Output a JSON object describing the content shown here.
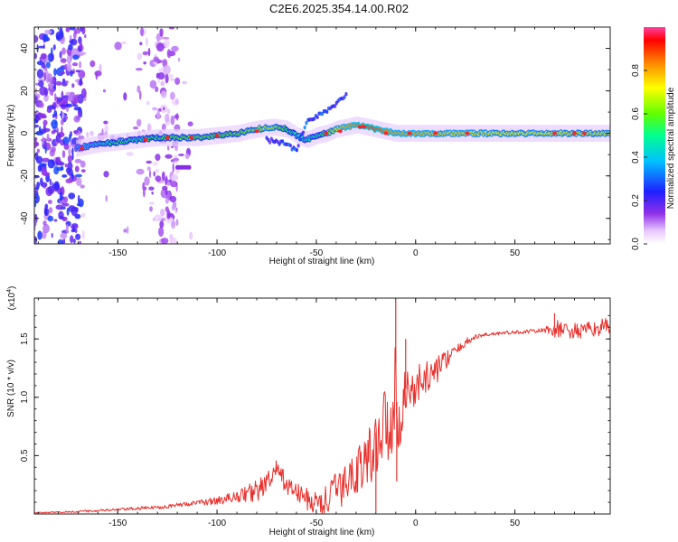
{
  "title": "C2E6.2025.354.14.00.R02",
  "colors": {
    "snr_line": "#e8302c",
    "track_core": "#d42020",
    "track_mid": "#b4f020",
    "track_edge": "#2060ff",
    "noise": "#7a20e0",
    "frame": "#222222"
  },
  "chart_data": [
    {
      "type": "heatmap",
      "name": "spectrogram",
      "xlabel": "Height of straight line (km)",
      "ylabel": "Frequency (Hz)",
      "xlim": [
        -192,
        98
      ],
      "ylim": [
        -52,
        50
      ],
      "x_ticks": [
        -150,
        -100,
        -50,
        0,
        50
      ],
      "x_tick_labels": [
        "-150",
        "-100",
        "-50",
        "0",
        "50"
      ],
      "y_ticks": [
        -40,
        -20,
        0,
        20,
        40
      ],
      "y_tick_labels": [
        "-40",
        "-20",
        "0",
        "20",
        "40"
      ],
      "colorbar": {
        "label": "Normalized spectral amplitude",
        "range": [
          0,
          1
        ],
        "ticks": [
          0.0,
          0.2,
          0.4,
          0.6,
          0.8
        ],
        "tick_labels": [
          "0.0",
          "0.2",
          "0.4",
          "0.6",
          "0.8"
        ],
        "colormap": [
          "#ffffff",
          "#e0c0ff",
          "#8020e0",
          "#2020ff",
          "#00c0ff",
          "#00ff80",
          "#80ff00",
          "#ffff00",
          "#ff8000",
          "#ff0000",
          "#ff40a0"
        ]
      },
      "track_x": [
        -171,
        -160,
        -150,
        -140,
        -130,
        -120,
        -110,
        -100,
        -90,
        -80,
        -72,
        -65,
        -60,
        -55,
        -50,
        -45,
        -40,
        -35,
        -30,
        -25,
        -20,
        -15,
        -10,
        -5,
        0,
        10,
        20,
        30,
        40,
        50,
        60,
        70,
        80,
        90,
        98
      ],
      "track_freq": [
        -7,
        -5,
        -4,
        -3,
        -2,
        -2,
        -2,
        -1,
        0,
        2,
        3,
        2,
        -1,
        -3,
        -1,
        0,
        2,
        3,
        4,
        3,
        2,
        1,
        0,
        0,
        0,
        0,
        0,
        0,
        0,
        0,
        0,
        0,
        0,
        0,
        0
      ],
      "track_amplitude": [
        0.35,
        0.45,
        0.55,
        0.5,
        0.55,
        0.6,
        0.6,
        0.6,
        0.6,
        0.65,
        0.7,
        0.55,
        0.5,
        0.45,
        0.5,
        0.6,
        0.7,
        0.8,
        0.85,
        0.9,
        0.9,
        0.85,
        0.8,
        0.8,
        0.8,
        0.75,
        0.75,
        0.75,
        0.72,
        0.72,
        0.72,
        0.72,
        0.7,
        0.7,
        0.7
      ],
      "branch_x": [
        -75,
        -70,
        -65,
        -60,
        -55,
        -50,
        -45,
        -40,
        -35
      ],
      "branch_freq": [
        -3,
        -4,
        -5,
        -8,
        5,
        8,
        10,
        14,
        18
      ]
    },
    {
      "type": "line",
      "name": "snr",
      "xlabel": "Height of straight line (km)",
      "ylabel": "SNR (10 * v/v)",
      "multiplier": "(x10^4)",
      "multiplier_base": "(x10",
      "multiplier_exp": "4",
      "multiplier_close": ")",
      "xlim": [
        -192,
        98
      ],
      "ylim": [
        0,
        1.85
      ],
      "x_ticks": [
        -150,
        -100,
        -50,
        0,
        50
      ],
      "x_tick_labels": [
        "-150",
        "-100",
        "-50",
        "0",
        "50"
      ],
      "y_ticks": [
        0.5,
        1.0,
        1.5
      ],
      "y_tick_labels": [
        "0.5",
        "1.0",
        "1.5"
      ],
      "envelope_x": [
        -192,
        -175,
        -160,
        -150,
        -140,
        -130,
        -120,
        -110,
        -100,
        -95,
        -90,
        -85,
        -80,
        -75,
        -72,
        -70,
        -67,
        -65,
        -62,
        -60,
        -57,
        -55,
        -52,
        -50,
        -47,
        -45,
        -42,
        -40,
        -37,
        -35,
        -32,
        -30,
        -27,
        -25,
        -22,
        -20,
        -17,
        -15,
        -13,
        -11,
        -10,
        -9,
        -8,
        -6,
        -4,
        -2,
        0,
        2,
        5,
        8,
        10,
        13,
        15,
        18,
        20,
        23,
        25,
        28,
        30,
        35,
        40,
        50,
        60,
        65,
        70,
        75,
        80,
        85,
        90,
        95,
        98
      ],
      "envelope_y": [
        0.01,
        0.02,
        0.03,
        0.04,
        0.05,
        0.06,
        0.08,
        0.1,
        0.12,
        0.14,
        0.16,
        0.19,
        0.22,
        0.28,
        0.34,
        0.4,
        0.32,
        0.28,
        0.22,
        0.2,
        0.18,
        0.15,
        0.12,
        0.11,
        0.12,
        0.14,
        0.2,
        0.23,
        0.26,
        0.3,
        0.38,
        0.42,
        0.46,
        0.5,
        0.58,
        0.7,
        0.78,
        0.85,
        0.9,
        0.95,
        1.3,
        0.62,
        0.95,
        1.05,
        1.1,
        1.08,
        1.12,
        1.15,
        1.2,
        1.22,
        1.25,
        1.3,
        1.34,
        1.38,
        1.4,
        1.44,
        1.48,
        1.5,
        1.52,
        1.54,
        1.55,
        1.56,
        1.57,
        1.58,
        1.6,
        1.59,
        1.58,
        1.58,
        1.6,
        1.62,
        1.62
      ],
      "noise_amplitude_x": [
        -192,
        -110,
        -90,
        -80,
        -60,
        -40,
        -30,
        -20,
        -12,
        -5,
        0,
        10,
        20,
        30,
        50,
        65,
        70,
        80,
        98
      ],
      "noise_amplitude_y": [
        0.004,
        0.02,
        0.05,
        0.1,
        0.08,
        0.15,
        0.2,
        0.3,
        0.38,
        0.25,
        0.18,
        0.12,
        0.05,
        0.02,
        0.015,
        0.02,
        0.08,
        0.07,
        0.07
      ],
      "spikes": [
        {
          "x": -10,
          "y": 1.83
        },
        {
          "x": -9.5,
          "y": 0.28
        },
        {
          "x": -5,
          "y": 1.5
        },
        {
          "x": -20,
          "y": 0.02
        },
        {
          "x": 70,
          "y": 1.72
        }
      ]
    }
  ]
}
